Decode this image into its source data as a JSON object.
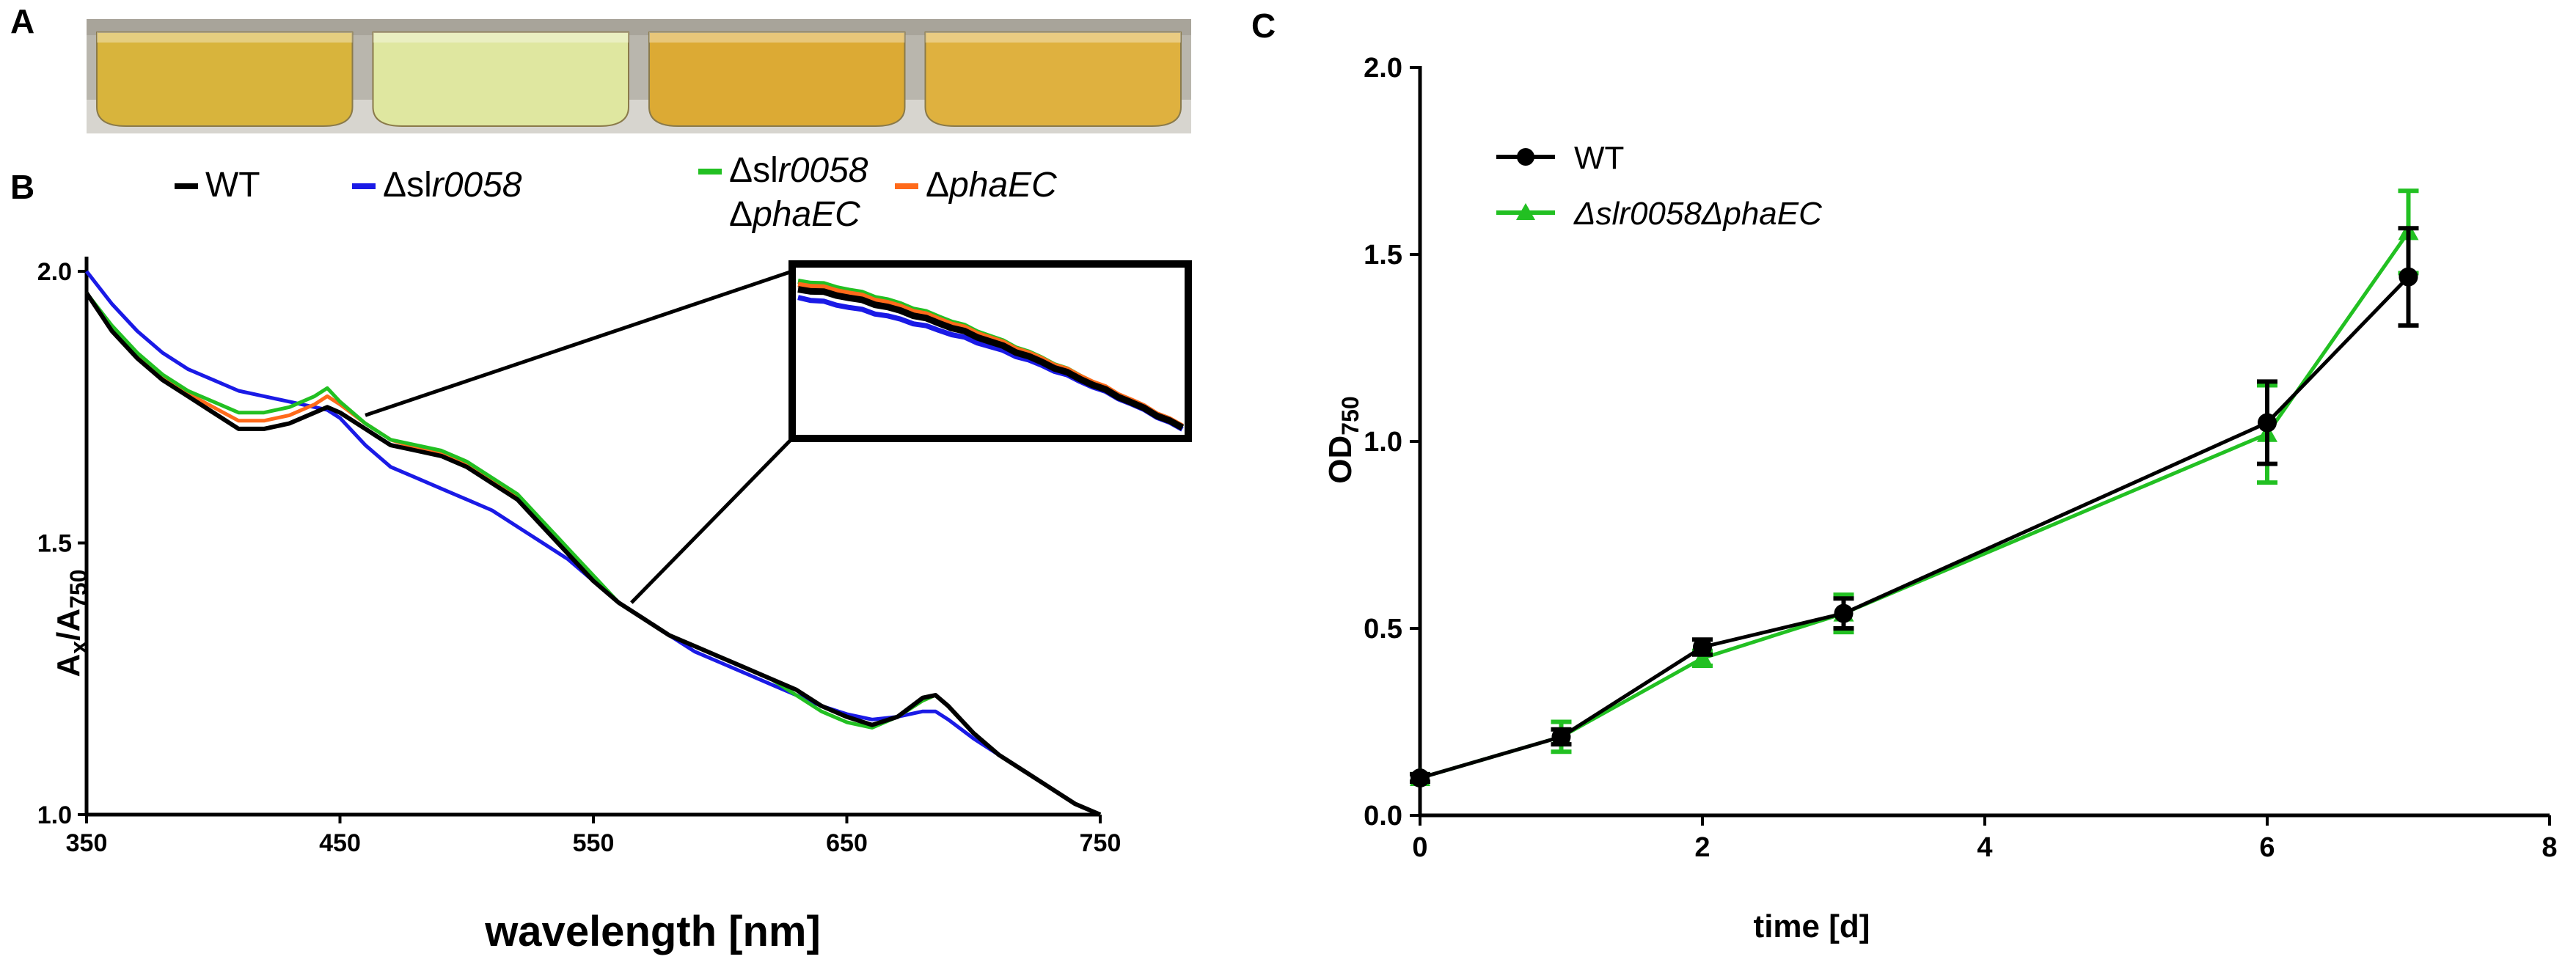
{
  "panels": {
    "a": "A",
    "b": "B",
    "c": "C"
  },
  "photo": {
    "flask_colors": [
      "#d8b43c",
      "#dfe7a0",
      "#dcaa34",
      "#dfb13f"
    ]
  },
  "panel_b": {
    "legend": [
      {
        "symbol": "—",
        "prefix": "",
        "text": "WT",
        "italic": "",
        "line2": "",
        "color": "#000000"
      },
      {
        "symbol": "—",
        "prefix": "Δsl",
        "text": "",
        "italic": "r0058",
        "line2": "",
        "color": "#1a1ae6"
      },
      {
        "symbol": "—",
        "prefix": "Δsl",
        "text": "",
        "italic": "r0058",
        "line2": "phaEC",
        "color": "#22c022"
      },
      {
        "symbol": "—",
        "prefix": "Δ",
        "text": "",
        "italic": "phaEC",
        "line2": "",
        "color": "#ff6a1a"
      }
    ],
    "line2_prefix": "Δ",
    "y_label_main": "A",
    "y_label_sub1": "x",
    "y_label_mid": "/A",
    "y_label_sub2": "750"
  },
  "panel_c": {
    "y_label_main": "OD",
    "y_label_sub": "750",
    "legend": [
      {
        "label": "WT",
        "italic": false,
        "color": "#000000",
        "marker": "circle"
      },
      {
        "label": "Δslr0058ΔphaEC",
        "italic": true,
        "color": "#22c022",
        "marker": "triangle"
      }
    ]
  },
  "chart_data": [
    {
      "type": "line",
      "title": "",
      "xlabel": "wavelength [nm]",
      "ylabel": "Ax/A750",
      "xlim": [
        350,
        750
      ],
      "ylim": [
        1.0,
        2.0
      ],
      "x_ticks": [
        350,
        450,
        550,
        650,
        750
      ],
      "x_tick_labels": [
        "350",
        "450",
        "550",
        "650",
        "750"
      ],
      "y_ticks": [
        1.0,
        1.5,
        2.0
      ],
      "y_tick_labels": [
        "1.0",
        "1.5",
        "2.0"
      ],
      "x": [
        350,
        360,
        370,
        380,
        390,
        400,
        410,
        420,
        430,
        440,
        445,
        450,
        460,
        470,
        480,
        490,
        500,
        510,
        520,
        530,
        540,
        550,
        560,
        570,
        580,
        590,
        600,
        610,
        620,
        630,
        640,
        650,
        660,
        670,
        680,
        685,
        690,
        700,
        710,
        720,
        730,
        740,
        750
      ],
      "series": [
        {
          "name": "WT",
          "color": "#000000",
          "values": [
            1.96,
            1.89,
            1.84,
            1.8,
            1.77,
            1.74,
            1.71,
            1.71,
            1.72,
            1.74,
            1.75,
            1.74,
            1.71,
            1.68,
            1.67,
            1.66,
            1.64,
            1.61,
            1.58,
            1.53,
            1.48,
            1.43,
            1.39,
            1.36,
            1.33,
            1.31,
            1.29,
            1.27,
            1.25,
            1.23,
            1.2,
            1.18,
            1.165,
            1.18,
            1.215,
            1.22,
            1.2,
            1.15,
            1.11,
            1.08,
            1.05,
            1.02,
            1.0
          ]
        },
        {
          "name": "Δslr0058",
          "color": "#1a1ae6",
          "values": [
            2.0,
            1.94,
            1.89,
            1.85,
            1.82,
            1.8,
            1.78,
            1.77,
            1.76,
            1.75,
            1.745,
            1.73,
            1.68,
            1.64,
            1.62,
            1.6,
            1.58,
            1.56,
            1.53,
            1.5,
            1.47,
            1.43,
            1.39,
            1.36,
            1.33,
            1.3,
            1.28,
            1.26,
            1.24,
            1.22,
            1.2,
            1.185,
            1.175,
            1.18,
            1.19,
            1.19,
            1.175,
            1.14,
            1.11,
            1.08,
            1.05,
            1.02,
            1.0
          ]
        },
        {
          "name": "Δslr0058ΔphaEC",
          "color": "#22c022",
          "values": [
            1.96,
            1.9,
            1.85,
            1.81,
            1.78,
            1.76,
            1.74,
            1.74,
            1.75,
            1.77,
            1.785,
            1.76,
            1.72,
            1.69,
            1.68,
            1.67,
            1.65,
            1.62,
            1.59,
            1.54,
            1.49,
            1.44,
            1.39,
            1.36,
            1.33,
            1.31,
            1.29,
            1.27,
            1.25,
            1.22,
            1.19,
            1.17,
            1.16,
            1.18,
            1.21,
            1.22,
            1.2,
            1.15,
            1.11,
            1.08,
            1.05,
            1.02,
            1.0
          ]
        },
        {
          "name": "ΔphaEC",
          "color": "#ff6a1a",
          "values": [
            1.96,
            1.895,
            1.845,
            1.805,
            1.775,
            1.75,
            1.725,
            1.725,
            1.735,
            1.755,
            1.77,
            1.755,
            1.72,
            1.69,
            1.675,
            1.665,
            1.645,
            1.615,
            1.585,
            1.535,
            1.485,
            1.435,
            1.39,
            1.36,
            1.33,
            1.31,
            1.29,
            1.27,
            1.25,
            1.23,
            1.2,
            1.18,
            1.165,
            1.18,
            1.21,
            1.22,
            1.2,
            1.15,
            1.11,
            1.08,
            1.05,
            1.02,
            1.0
          ]
        }
      ],
      "inset": {
        "x_range": [
          450,
          565
        ],
        "description": "magnified region"
      }
    },
    {
      "type": "line",
      "title": "",
      "xlabel": "time [d]",
      "ylabel": "OD750",
      "xlim": [
        0,
        8
      ],
      "ylim": [
        0.0,
        2.0
      ],
      "x_ticks": [
        0,
        2,
        4,
        6,
        8
      ],
      "x_tick_labels": [
        "0",
        "2",
        "4",
        "6",
        "8"
      ],
      "y_ticks": [
        0.0,
        0.5,
        1.0,
        1.5,
        2.0
      ],
      "y_tick_labels": [
        "0.0",
        "0.5",
        "1.0",
        "1.5",
        "2.0"
      ],
      "series": [
        {
          "name": "WT",
          "color": "#000000",
          "marker": "circle",
          "x": [
            0,
            1,
            2,
            3,
            6,
            7
          ],
          "values": [
            0.1,
            0.21,
            0.45,
            0.54,
            1.05,
            1.44
          ],
          "error": [
            0.01,
            0.02,
            0.02,
            0.04,
            0.11,
            0.13
          ]
        },
        {
          "name": "Δslr0058ΔphaEC",
          "color": "#22c022",
          "marker": "triangle",
          "x": [
            0,
            1,
            2,
            3,
            6,
            7
          ],
          "values": [
            0.1,
            0.21,
            0.42,
            0.54,
            1.02,
            1.56
          ],
          "error": [
            0.01,
            0.04,
            0.02,
            0.05,
            0.13,
            0.11
          ]
        }
      ]
    }
  ]
}
